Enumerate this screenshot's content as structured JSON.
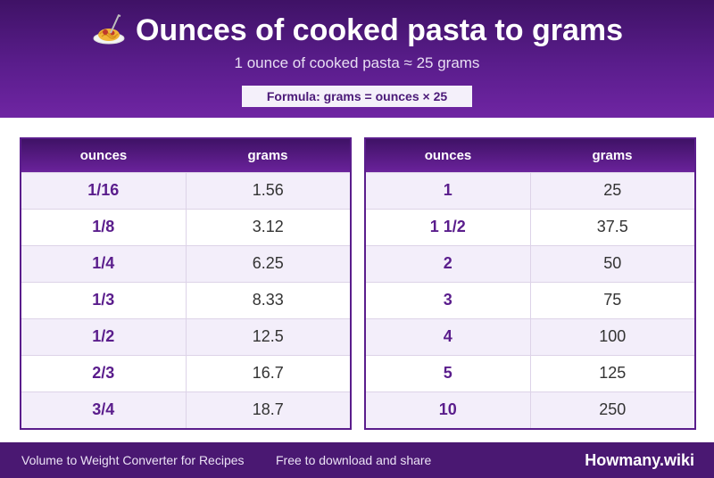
{
  "header": {
    "icon": "spaghetti-icon",
    "title": "Ounces of cooked pasta to grams",
    "subtitle": "1 ounce of cooked pasta ≈ 25 grams",
    "formula": "Formula: grams = ounces × 25"
  },
  "tables": [
    {
      "headers": [
        "ounces",
        "grams"
      ],
      "rows": [
        {
          "ounces": "1/16",
          "grams": "1.56"
        },
        {
          "ounces": "1/8",
          "grams": "3.12"
        },
        {
          "ounces": "1/4",
          "grams": "6.25"
        },
        {
          "ounces": "1/3",
          "grams": "8.33"
        },
        {
          "ounces": "1/2",
          "grams": "12.5"
        },
        {
          "ounces": "2/3",
          "grams": "16.7"
        },
        {
          "ounces": "3/4",
          "grams": "18.7"
        }
      ]
    },
    {
      "headers": [
        "ounces",
        "grams"
      ],
      "rows": [
        {
          "ounces": "1",
          "grams": "25"
        },
        {
          "ounces": "1 1/2",
          "grams": "37.5"
        },
        {
          "ounces": "2",
          "grams": "50"
        },
        {
          "ounces": "3",
          "grams": "75"
        },
        {
          "ounces": "4",
          "grams": "100"
        },
        {
          "ounces": "5",
          "grams": "125"
        },
        {
          "ounces": "10",
          "grams": "250"
        }
      ]
    }
  ],
  "footer": {
    "left_text": "Volume to Weight Converter for Recipes",
    "middle_text": "Free to download and share",
    "brand": "Howmany.wiki"
  }
}
